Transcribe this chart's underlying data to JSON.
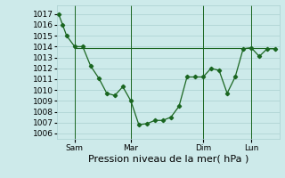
{
  "line1_x": [
    0,
    0.5,
    1,
    2,
    3,
    4,
    5,
    6,
    7,
    8,
    9,
    10,
    11,
    12,
    13,
    14,
    15,
    16,
    17,
    18,
    19,
    20,
    21,
    22,
    23,
    24,
    25,
    26,
    27
  ],
  "line1_y": [
    1017.0,
    1016.0,
    1015.0,
    1014.0,
    1014.0,
    1012.2,
    1011.1,
    1009.7,
    1009.5,
    1010.3,
    1009.0,
    1006.8,
    1006.9,
    1007.2,
    1007.2,
    1007.5,
    1008.5,
    1011.2,
    1011.2,
    1011.2,
    1012.0,
    1011.8,
    1009.7,
    1011.2,
    1013.8,
    1013.9,
    1013.1,
    1013.8,
    1013.8
  ],
  "line2_x": [
    2,
    27
  ],
  "line2_y": [
    1013.9,
    1013.9
  ],
  "line_color": "#1a6620",
  "bg_color": "#cdeaea",
  "grid_color": "#aacfcf",
  "xlabel": "Pression niveau de la mer( hPa )",
  "ylim": [
    1005.5,
    1017.8
  ],
  "yticks": [
    1006,
    1007,
    1008,
    1009,
    1010,
    1011,
    1012,
    1013,
    1014,
    1015,
    1016,
    1017
  ],
  "xtick_positions": [
    2,
    9,
    18,
    24
  ],
  "xtick_labels": [
    "Sam",
    "Mar",
    "Dim",
    "Lun"
  ],
  "vline_positions": [
    2,
    9,
    18,
    24
  ],
  "xlim": [
    -0.2,
    27.5
  ],
  "xlabel_fontsize": 8,
  "tick_fontsize": 6.5
}
